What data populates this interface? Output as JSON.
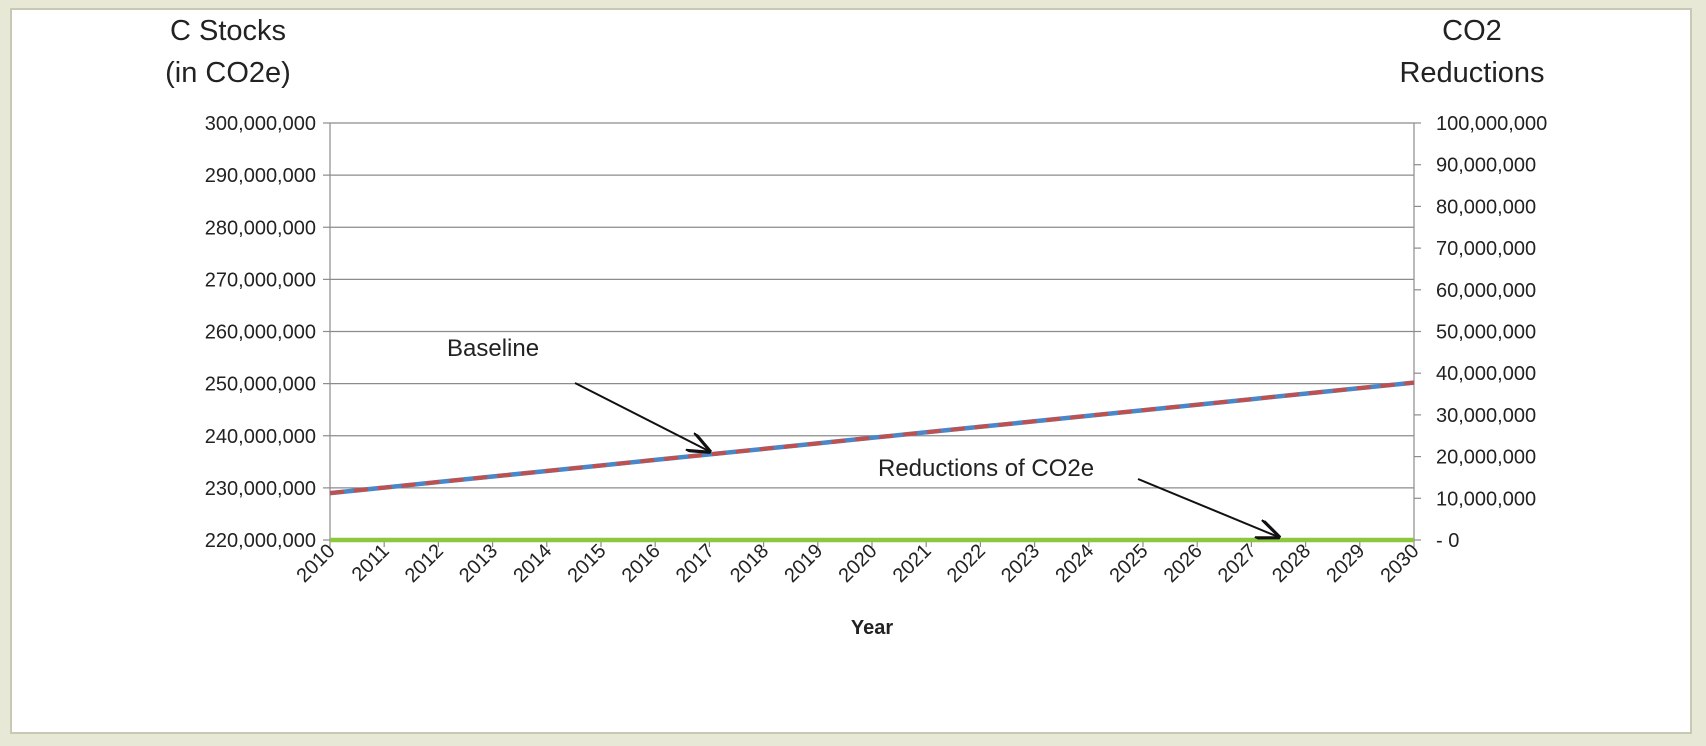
{
  "chart_data": {
    "type": "line",
    "x": [
      2010,
      2011,
      2012,
      2013,
      2014,
      2015,
      2016,
      2017,
      2018,
      2019,
      2020,
      2021,
      2022,
      2023,
      2024,
      2025,
      2026,
      2027,
      2028,
      2029,
      2030
    ],
    "xlabel": "Year",
    "ylabel_left_lines": [
      "C Stocks",
      "(in CO2e)"
    ],
    "ylabel_right_lines": [
      "CO2",
      "Reductions"
    ],
    "ylim_left": [
      220000000,
      300000000
    ],
    "ylim_right": [
      0,
      100000000
    ],
    "yticks_left": [
      "300,000,000",
      "290,000,000",
      "280,000,000",
      "270,000,000",
      "260,000,000",
      "250,000,000",
      "240,000,000",
      "230,000,000",
      "220,000,000"
    ],
    "yticks_right": [
      "100,000,000",
      "90,000,000",
      "80,000,000",
      "70,000,000",
      "60,000,000",
      "50,000,000",
      "40,000,000",
      "30,000,000",
      "20,000,000",
      "10,000,000",
      "-  0"
    ],
    "grid": true,
    "series": [
      {
        "name": "Baseline",
        "axis": "left",
        "color": "#4a86c8",
        "values": [
          229000000,
          230060000,
          231120000,
          232180000,
          233240000,
          234300000,
          235360000,
          236420000,
          237480000,
          238540000,
          239600000,
          240660000,
          241720000,
          242780000,
          243840000,
          244900000,
          245960000,
          247020000,
          248080000,
          249140000,
          250200000
        ]
      },
      {
        "axis": "left",
        "color": "#c0504d",
        "dashed": true,
        "values": [
          229000000,
          230060000,
          231120000,
          232180000,
          233240000,
          234300000,
          235360000,
          236420000,
          237480000,
          238540000,
          239600000,
          240660000,
          241720000,
          242780000,
          243840000,
          244900000,
          245960000,
          247020000,
          248080000,
          249140000,
          250200000
        ]
      },
      {
        "name": "Reductions of CO2e",
        "axis": "right",
        "color": "#8dc63f",
        "values": [
          0,
          0,
          0,
          0,
          0,
          0,
          0,
          0,
          0,
          0,
          0,
          0,
          0,
          0,
          0,
          0,
          0,
          0,
          0,
          0,
          0
        ]
      }
    ],
    "annotations": [
      {
        "text": "Baseline",
        "color": "#1f6fbf",
        "points_to_x": 2017,
        "series": 0
      },
      {
        "text": "Reductions of CO2e",
        "color": "#8dc63f",
        "points_to_x": 2027.5,
        "series": 2
      }
    ],
    "colors": {
      "grid": "#8c8c8c",
      "axis": "#8c8c8c",
      "text": "#222222"
    }
  }
}
